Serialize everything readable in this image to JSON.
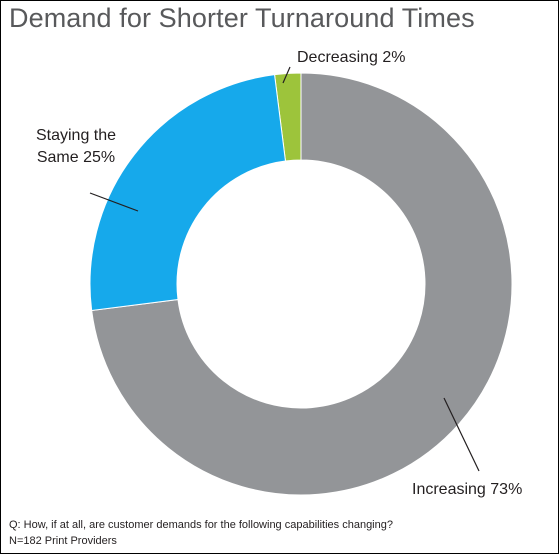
{
  "chart_data": {
    "type": "pie",
    "title": "Demand for Shorter Turnaround Times",
    "donut": true,
    "slices": [
      {
        "label": "Decreasing",
        "value": 2,
        "color": "#9dc43b",
        "display": "Decreasing 2%"
      },
      {
        "label": "Increasing",
        "value": 73,
        "color": "#939598",
        "display": "Increasing 73%"
      },
      {
        "label": "Staying the Same",
        "value": 25,
        "color": "#16a9eb",
        "display_lines": [
          "Staying the",
          "Same 25%"
        ]
      }
    ],
    "legend": "none"
  },
  "footnote": {
    "question": "Q: How, if at all, are customer demands for the following capabilities changing?",
    "sample": "N=182 Print Providers"
  }
}
